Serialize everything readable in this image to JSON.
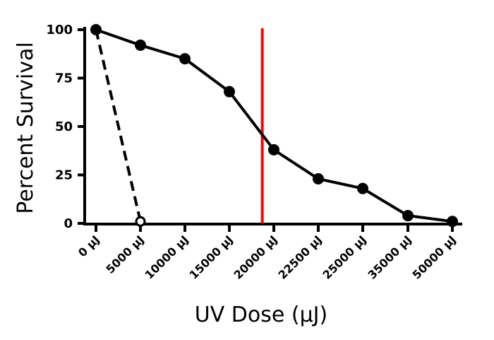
{
  "chart_data": {
    "type": "line",
    "categories": [
      "0 µJ",
      "5000 µJ",
      "10000 µJ",
      "15000 µJ",
      "20000 µJ",
      "22500 µJ",
      "25000 µJ",
      "35000 µJ",
      "50000 µJ"
    ],
    "xlabel": "UV Dose (µJ)",
    "ylabel": "Percent Survival",
    "ylim": [
      0,
      100
    ],
    "yticks": [
      0,
      25,
      50,
      75,
      100
    ],
    "grid": false,
    "series": [
      {
        "style": "solid",
        "marker": "filled-circle",
        "color": "#000000",
        "values": [
          100,
          92,
          85,
          68,
          38,
          23,
          18,
          4,
          1
        ]
      },
      {
        "style": "dashed",
        "marker": "open-circle",
        "color": "#000000",
        "values": [
          100,
          1,
          null,
          null,
          null,
          null,
          null,
          null,
          null
        ]
      }
    ],
    "reference_line": {
      "orientation": "vertical",
      "x": 18700,
      "color": "#ff0000"
    }
  }
}
